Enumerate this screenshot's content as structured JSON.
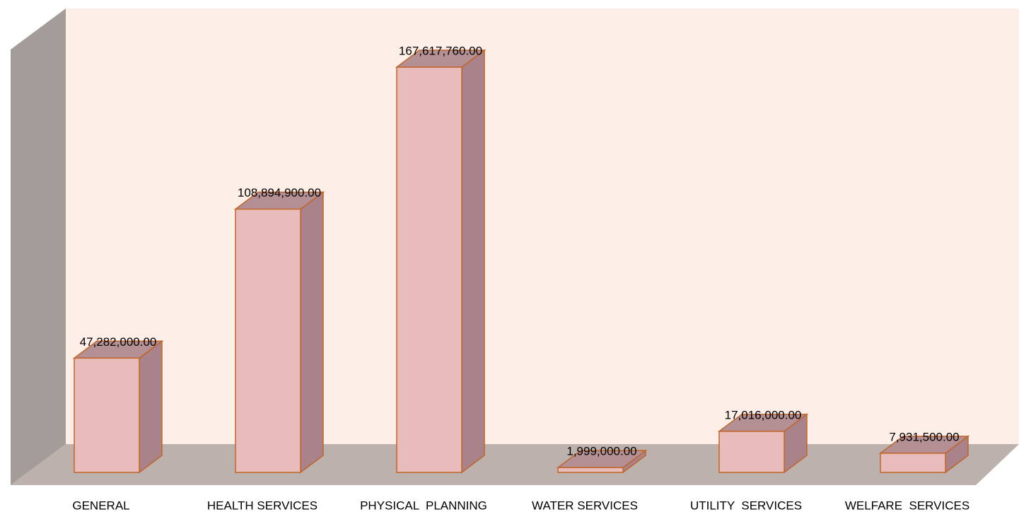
{
  "chart_data": {
    "type": "bar3d",
    "categories": [
      "GENERAL",
      "HEALTH SERVICES",
      "PHYSICAL  PLANNING",
      "WATER SERVICES",
      "UTILITY  SERVICES",
      "WELFARE  SERVICES"
    ],
    "values": [
      47282000,
      108894900,
      167617760,
      1999000,
      17016000,
      7931500
    ],
    "value_labels": [
      "47,282,000.00",
      "108,894,900.00",
      "167,617,760.00",
      "1,999,000.00",
      "17,016,000.00",
      "7,931,500.00"
    ],
    "color": "#e9bcbc"
  }
}
